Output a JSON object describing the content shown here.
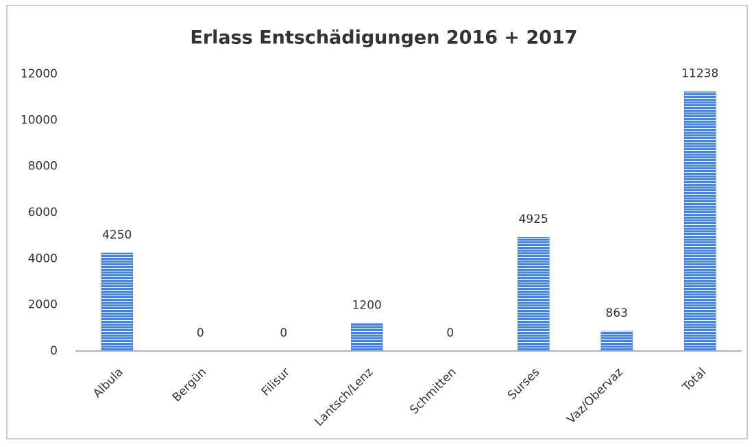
{
  "chart_data": {
    "type": "bar",
    "title": "Erlass Entschädigungen 2016 + 2017",
    "categories": [
      "Albula",
      "Bergün",
      "Filisur",
      "Lantsch/Lenz",
      "Schmitten",
      "Surses",
      "Vaz/Obervaz",
      "Total"
    ],
    "values": [
      4250,
      0,
      0,
      1200,
      0,
      4925,
      863,
      11238
    ],
    "color": "#4f7fd0",
    "ylim": [
      0,
      12000
    ],
    "yticks": [
      0,
      2000,
      4000,
      6000,
      8000,
      10000,
      12000
    ],
    "grid": false
  }
}
